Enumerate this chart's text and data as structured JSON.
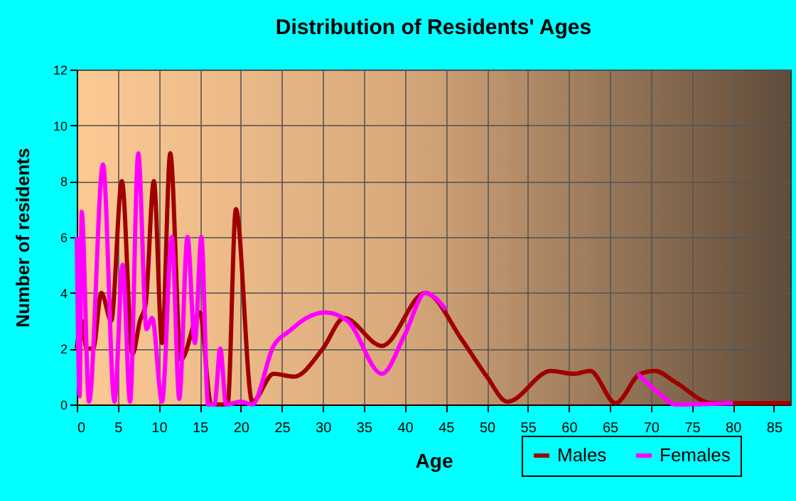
{
  "chart_data": {
    "type": "line",
    "title": "Distribution of Residents' Ages",
    "xlabel": "Age",
    "ylabel": "Number of residents",
    "xlim": [
      0,
      87
    ],
    "xticks": [
      0,
      5,
      10,
      15,
      20,
      25,
      30,
      35,
      40,
      45,
      50,
      55,
      60,
      65,
      70,
      75,
      80,
      85
    ],
    "ylim": [
      0,
      12
    ],
    "yticks": [
      0,
      2,
      4,
      6,
      8,
      10,
      12
    ],
    "grid": true,
    "legend": "bottom right",
    "series": [
      {
        "name": "Males",
        "color": "#a00000",
        "x": [
          0,
          0.6,
          1.2,
          2,
          3,
          4.2,
          5.5,
          6.8,
          7.7,
          8.4,
          9.4,
          10.4,
          11.4,
          12.7,
          15,
          16.4,
          18.4,
          19.4,
          21.4,
          24,
          26.5,
          30,
          32.6,
          37.2,
          42.5,
          47,
          50,
          52.5,
          57.8,
          60.6,
          62.6,
          65.7,
          68.7,
          70.5,
          73,
          77.4,
          80,
          87
        ],
        "values": [
          2,
          3,
          2,
          2,
          4,
          3,
          8,
          1.8,
          3,
          3.6,
          8,
          2.2,
          9,
          1.6,
          3.3,
          0,
          0,
          7,
          0.1,
          1.1,
          1,
          2,
          3.1,
          2.1,
          4,
          2.3,
          1,
          0.1,
          1.2,
          1.1,
          1.2,
          0.05,
          1.1,
          1.2,
          0.8,
          0.05,
          0.05,
          0.05
        ]
      },
      {
        "name": "Females",
        "color": "#ff00ff",
        "x": [
          0,
          0.35,
          0.6,
          1.5,
          3.2,
          4.6,
          5.6,
          6.5,
          7.5,
          8.5,
          9.2,
          10.4,
          11.6,
          12.5,
          13.5,
          14.4,
          15.2,
          16,
          16.8,
          17.5,
          18.2,
          20,
          21.4,
          24,
          26,
          28,
          30.3,
          33,
          37.2,
          40,
          42.5,
          45,
          50,
          66,
          68.4,
          71,
          73,
          80
        ],
        "values": [
          6,
          0.3,
          6.9,
          0.1,
          8.6,
          0.1,
          5,
          0.1,
          9,
          2.7,
          3.1,
          0.1,
          6,
          0.2,
          6,
          2.2,
          6,
          0,
          0,
          2,
          0,
          0.1,
          0,
          2.1,
          2.65,
          3.1,
          3.3,
          3,
          1.1,
          2.5,
          4,
          3.4,
          null,
          null,
          1.1,
          0.4,
          0,
          0.05
        ]
      }
    ]
  }
}
